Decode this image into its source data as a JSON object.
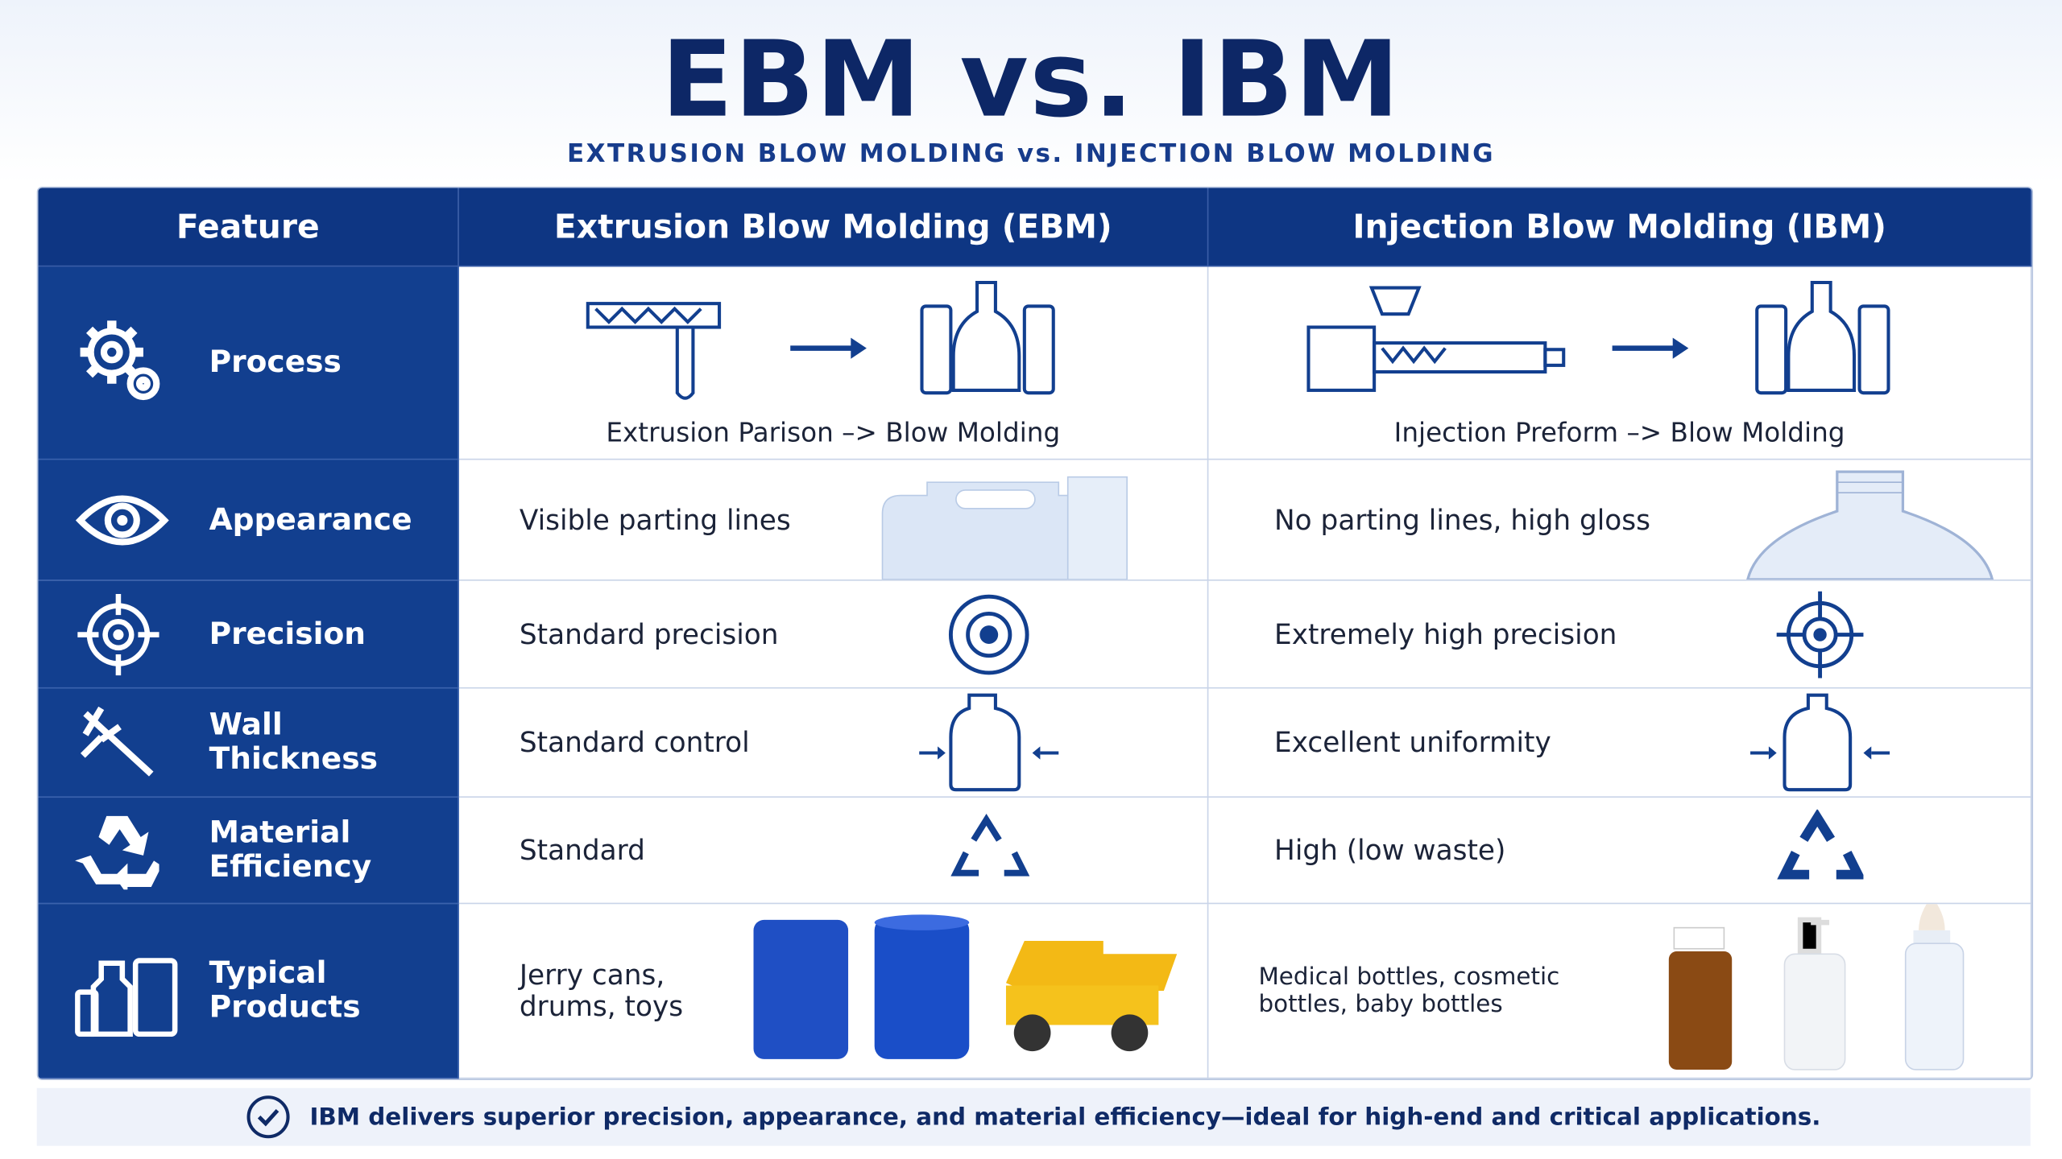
{
  "header": {
    "title": "EBM vs. IBM",
    "subtitle": "EXTRUSION BLOW MOLDING vs. INJECTION BLOW MOLDING"
  },
  "table": {
    "columns": [
      "Feature",
      "Extrusion Blow Molding (EBM)",
      "Injection Blow Molding (IBM)"
    ],
    "rows": [
      [
        "Process",
        "Extrusion Parison –> Blow Molding",
        "Injection Preform –> Blow Molding"
      ],
      [
        "Appearance",
        "Visible parting lines",
        "No parting lines, high gloss"
      ],
      [
        "Precision",
        "Standard precision",
        "Extremely high precision"
      ],
      [
        "Wall Thickness",
        "Standard control",
        "Excellent uniformity"
      ],
      [
        "Material Efficiency",
        "Standard",
        "High (low waste)"
      ],
      [
        "Typical Products",
        "Jerry cans, drums, toys",
        "Medical bottles, cosmetic bottles, baby bottles"
      ]
    ]
  },
  "footer": {
    "note": "IBM delivers superior precision, appearance, and material efficiency—ideal for high-end and critical applications."
  }
}
